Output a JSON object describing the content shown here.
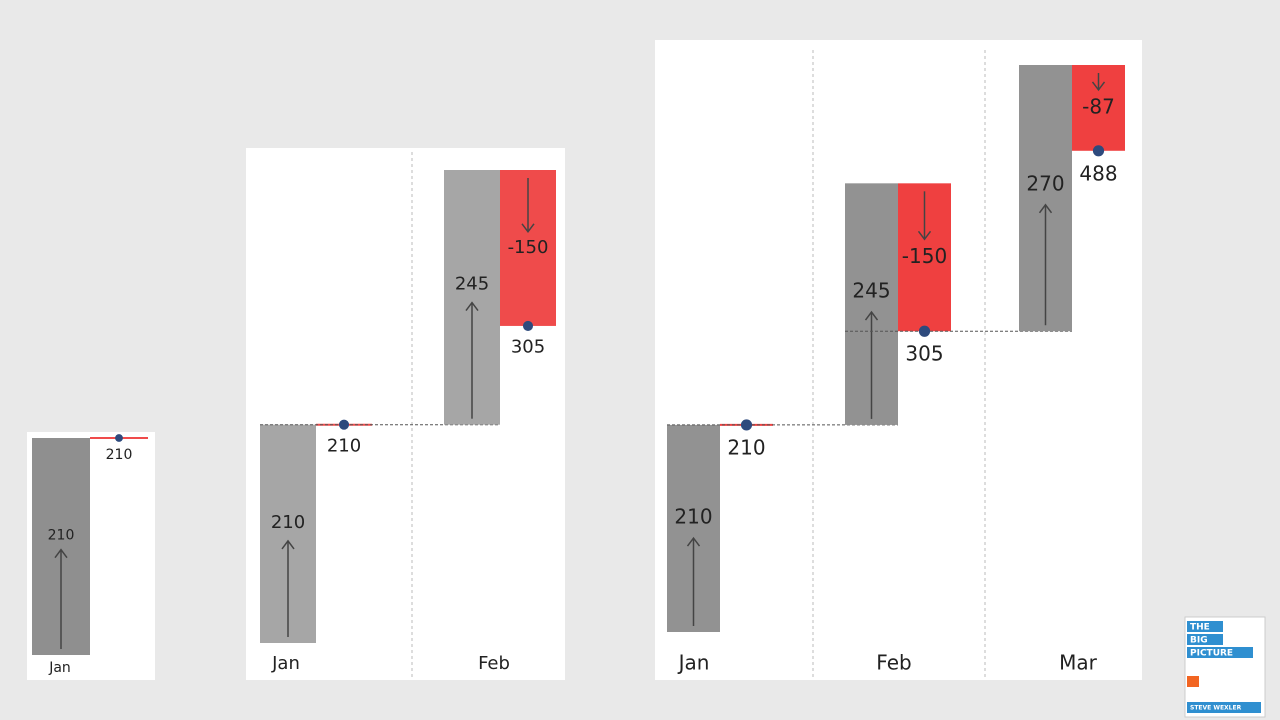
{
  "chart_data": [
    {
      "type": "waterfall",
      "categories": [
        "Jan"
      ],
      "increase": [
        210
      ],
      "decrease": [
        null
      ],
      "total": [
        210
      ],
      "increase_color": "#8f8f8f",
      "decrease_color": "#ef4b4b"
    },
    {
      "type": "waterfall",
      "categories": [
        "Jan",
        "Feb"
      ],
      "increase": [
        210,
        245
      ],
      "decrease": [
        null,
        -150
      ],
      "total": [
        210,
        305
      ],
      "increase_color": "#a6a6a6",
      "decrease_color": "#ef4b4b"
    },
    {
      "type": "waterfall",
      "categories": [
        "Jan",
        "Feb",
        "Mar"
      ],
      "increase": [
        210,
        245,
        270
      ],
      "decrease": [
        null,
        -150,
        -87
      ],
      "total": [
        210,
        305,
        488
      ],
      "increase_color": "#929292",
      "decrease_color": "#ef4040"
    }
  ],
  "logo": {
    "lines": [
      "THE",
      "BIG",
      "PICTURE"
    ],
    "author": "STEVE WEXLER"
  }
}
